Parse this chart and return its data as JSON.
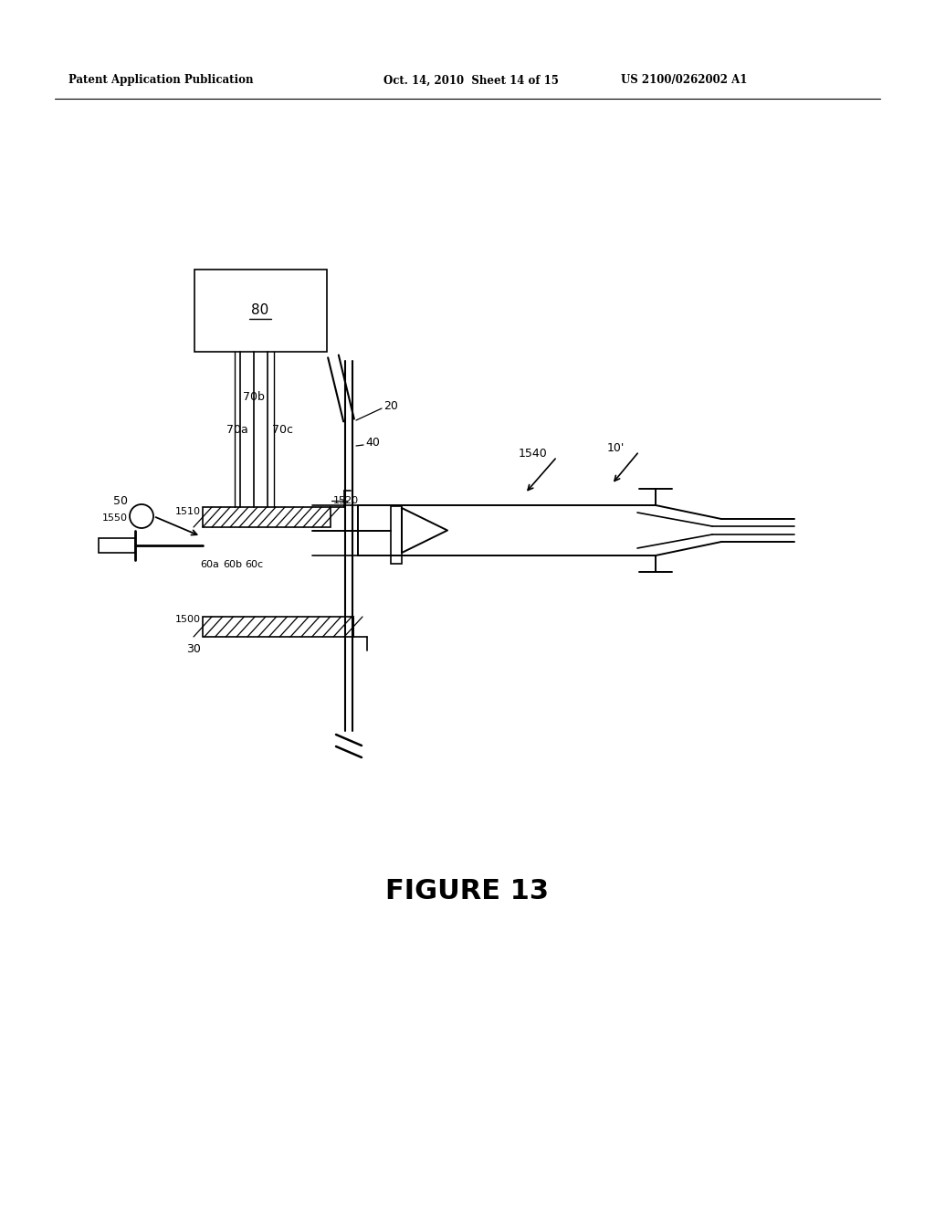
{
  "header_left": "Patent Application Publication",
  "header_center": "Oct. 14, 2010  Sheet 14 of 15",
  "header_right": "US 2100/0262002 A1",
  "figure_title": "FIGURE 13",
  "bg_color": "#ffffff",
  "line_color": "#000000"
}
